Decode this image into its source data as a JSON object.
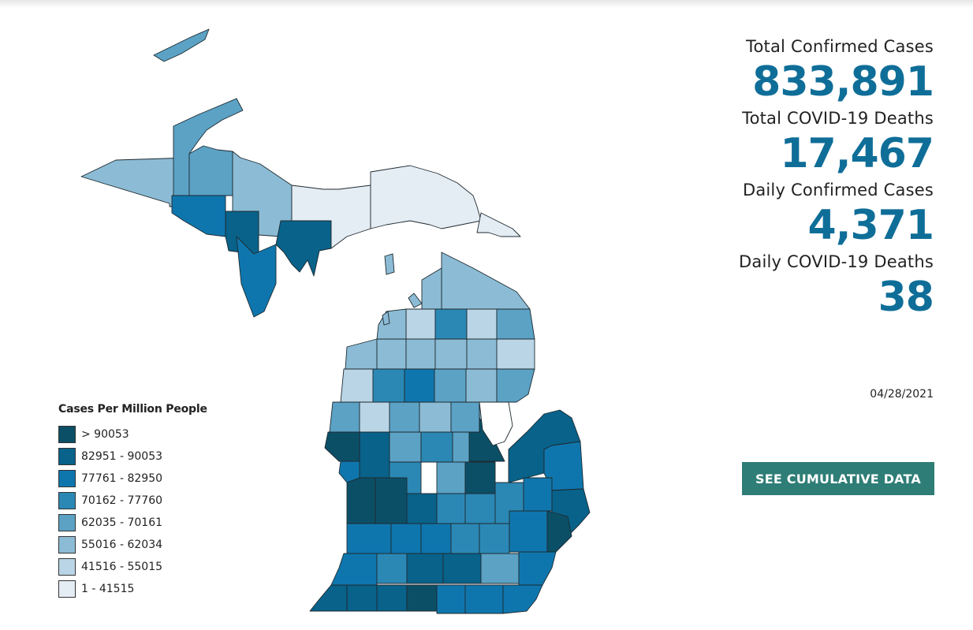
{
  "stats": {
    "total_cases_label": "Total Confirmed Cases",
    "total_cases_value": "833,891",
    "total_deaths_label": "Total COVID-19 Deaths",
    "total_deaths_value": "17,467",
    "daily_cases_label": "Daily Confirmed Cases",
    "daily_cases_value": "4,371",
    "daily_deaths_label": "Daily COVID-19 Deaths",
    "daily_deaths_value": "38"
  },
  "report_date": "04/28/2021",
  "cta": {
    "label": "SEE CUMULATIVE DATA"
  },
  "legend": {
    "title": "Cases Per Million People",
    "items": [
      {
        "label": "> 90053",
        "color": "#0b4f66"
      },
      {
        "label": "82951 - 90053",
        "color": "#08628a"
      },
      {
        "label": "77761 - 82950",
        "color": "#0f76ad"
      },
      {
        "label": "70162 - 77760",
        "color": "#2b88b5"
      },
      {
        "label": "62035 - 70161",
        "color": "#5ba2c5"
      },
      {
        "label": "55016 - 62034",
        "color": "#8cbcd5"
      },
      {
        "label": "41516 - 55015",
        "color": "#b9d5e6"
      },
      {
        "label": "1 - 41515",
        "color": "#e4ecf4"
      }
    ]
  },
  "colors": {
    "accent": "#0f6e98",
    "button": "#2e7d76",
    "text": "#222222"
  }
}
